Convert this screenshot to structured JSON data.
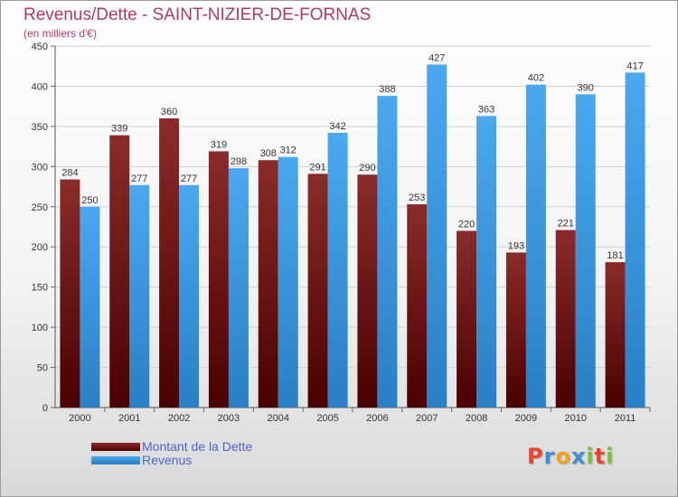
{
  "title": "Revenus/Dette - SAINT-NIZIER-DE-FORNAS",
  "subtitle": "(en milliers d'€)",
  "chart_data": {
    "type": "bar",
    "title": "Revenus/Dette - SAINT-NIZIER-DE-FORNAS",
    "subtitle": "(en milliers d'€)",
    "categories": [
      "2000",
      "2001",
      "2002",
      "2003",
      "2004",
      "2005",
      "2006",
      "2007",
      "2008",
      "2009",
      "2010",
      "2011"
    ],
    "series": [
      {
        "name": "Montant de la Dette",
        "color": "#7a1a1a",
        "values": [
          284,
          339,
          360,
          319,
          308,
          291,
          290,
          253,
          220,
          193,
          221,
          181
        ]
      },
      {
        "name": "Revenus",
        "color": "#3d9be6",
        "values": [
          250,
          277,
          277,
          298,
          312,
          342,
          388,
          427,
          363,
          402,
          390,
          417
        ]
      }
    ],
    "ylim": [
      0,
      450
    ],
    "yticks": [
      0,
      50,
      100,
      150,
      200,
      250,
      300,
      350,
      400,
      450
    ],
    "grid": true,
    "legend": "bottom-left"
  },
  "legend": {
    "items": [
      {
        "label": "Montant de la Dette",
        "color": "#6b0f0f"
      },
      {
        "label": "Revenus",
        "color": "#3d9be6"
      }
    ]
  },
  "logo": {
    "letters": [
      "P",
      "r",
      "o",
      "x",
      "i",
      "t",
      "i"
    ],
    "colors": [
      "#e8452e",
      "#3b8fd6",
      "#f2a21b",
      "#3b8fd6",
      "#7cbf3a",
      "#e8452e",
      "#7cbf3a"
    ]
  }
}
